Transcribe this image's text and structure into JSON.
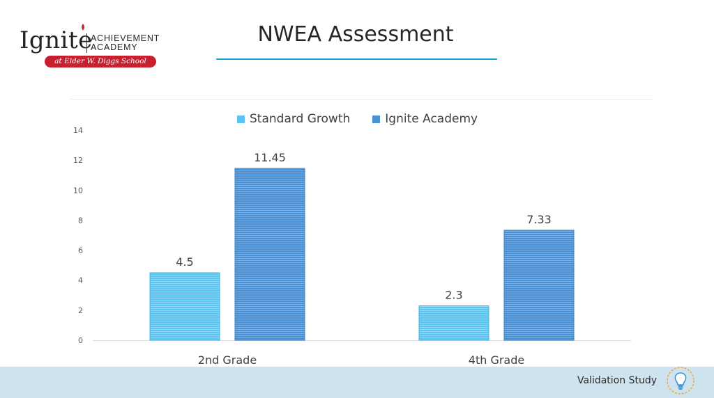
{
  "logo": {
    "brand": "Ignite",
    "line1": "ACHIEVEMENT",
    "line2": "ACADEMY",
    "badge": "at Elder W. Diggs School"
  },
  "slide": {
    "title": "NWEA Assessment"
  },
  "footer": {
    "text": "Validation Study",
    "logo_icon": "lightbulb-icon"
  },
  "colors": {
    "standard": "#5bc4f0",
    "ignite": "#4a90d4",
    "title_rule": "#1ea0d8",
    "badge": "#c8202f",
    "footer_bg": "#cfe3ef"
  },
  "chart_data": {
    "type": "bar",
    "categories": [
      "2nd Grade",
      "4th Grade"
    ],
    "series": [
      {
        "name": "Standard Growth",
        "values": [
          4.5,
          2.3
        ],
        "labels": [
          "4.5",
          "2.3"
        ]
      },
      {
        "name": "Ignite Academy",
        "values": [
          11.45,
          7.33
        ],
        "labels": [
          "11.45",
          "7.33"
        ]
      }
    ],
    "ylim": [
      0,
      14
    ],
    "yticks": [
      "0",
      "2",
      "4",
      "6",
      "8",
      "10",
      "12",
      "14"
    ],
    "legend": "top",
    "grid": false
  }
}
